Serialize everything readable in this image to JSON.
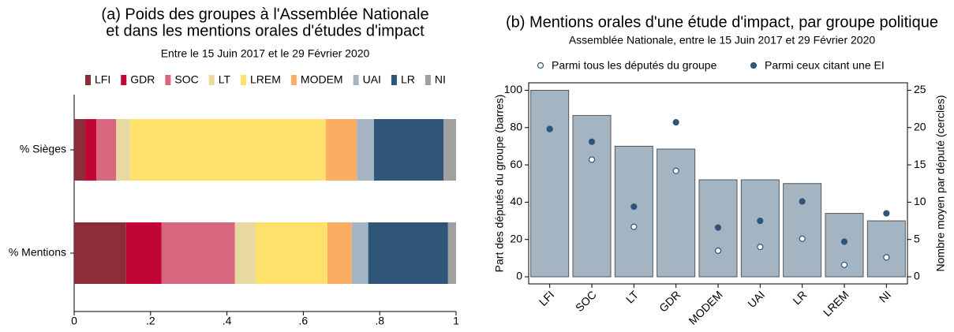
{
  "chart_data": [
    {
      "type": "hbar-stacked",
      "title": [
        "(a) Poids des groupes à l'Assemblée Nationale",
        "et dans les mentions orales d'études d'impact"
      ],
      "subtitle": "Entre le 15 Juin 2017 et le 29 Février 2020",
      "categories": [
        "% Sièges",
        "% Mentions"
      ],
      "series": [
        {
          "name": "LFI",
          "color": "#8b2e3a",
          "values": [
            0.029,
            0.136
          ]
        },
        {
          "name": "GDR",
          "color": "#c10534",
          "values": [
            0.029,
            0.093
          ]
        },
        {
          "name": "SOC",
          "color": "#d9667f",
          "values": [
            0.052,
            0.192
          ]
        },
        {
          "name": "LT",
          "color": "#e8d9a0",
          "values": [
            0.037,
            0.054
          ]
        },
        {
          "name": "LREM",
          "color": "#fde16a",
          "values": [
            0.512,
            0.188
          ]
        },
        {
          "name": "MODEM",
          "color": "#fbad64",
          "values": [
            0.081,
            0.064
          ]
        },
        {
          "name": "UAI",
          "color": "#a3b4c3",
          "values": [
            0.045,
            0.043
          ]
        },
        {
          "name": "LR",
          "color": "#2f5578",
          "values": [
            0.182,
            0.209
          ]
        },
        {
          "name": "NI",
          "color": "#a0a0a0",
          "values": [
            0.033,
            0.021
          ]
        }
      ],
      "xlim": [
        0,
        1
      ],
      "xticks": [
        0,
        {
          "value": 0.2,
          "label": ".2"
        },
        {
          "value": 0.4,
          "label": ".4"
        },
        {
          "value": 0.6,
          "label": ".6"
        },
        {
          "value": 0.8,
          "label": ".8"
        },
        1
      ],
      "legend": "top"
    },
    {
      "type": "bar-dots",
      "title": "(b) Mentions orales d'une étude d'impact, par groupe politique",
      "subtitle": "Assemblée Nationale, entre le 15 Juin 2017 et 29 Février 2020",
      "ylabel": "Part des députés du groupe (barres)",
      "y2label": "Nombre moyen par député (cercles)",
      "categories": [
        "LFI",
        "SOC",
        "LT",
        "GDR",
        "MODEM",
        "UAI",
        "LR",
        "LREM",
        "NI"
      ],
      "series": [
        {
          "color": "#a3b4c3",
          "values": [
            100,
            86.5,
            70,
            68.5,
            52,
            52,
            50,
            34,
            30
          ]
        },
        {
          "name": "Parmi tous les députés du groupe",
          "color": "#2f5578",
          "marker": "open",
          "axis": "y2",
          "values": [
            19.8,
            15.7,
            6.7,
            14.2,
            3.5,
            4.0,
            5.1,
            1.6,
            2.6
          ]
        },
        {
          "name": "Parmi ceux citant une EI",
          "color": "#2f5578",
          "marker": "filled",
          "axis": "y2",
          "values": [
            19.8,
            18.1,
            9.4,
            20.7,
            6.6,
            7.5,
            10.1,
            4.7,
            8.5
          ]
        }
      ],
      "ylim": [
        0,
        104
      ],
      "yticks": [
        0,
        20,
        40,
        60,
        80,
        100
      ],
      "y2lim": [
        0,
        26
      ],
      "y2ticks": [
        0,
        5,
        10,
        15,
        20,
        25
      ],
      "legend": "top"
    }
  ]
}
